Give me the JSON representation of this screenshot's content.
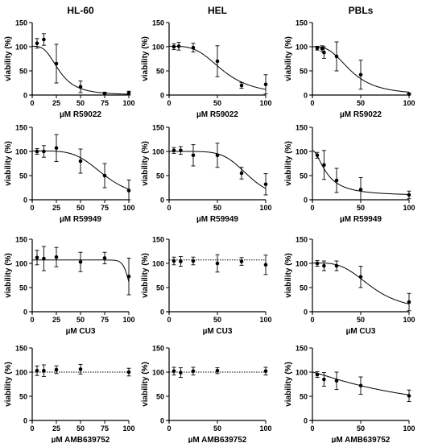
{
  "columns": [
    "HL-60",
    "HEL",
    "PBLs"
  ],
  "chart_data": [
    {
      "type": "scatter",
      "row": 0,
      "col": 0,
      "ylabel": "viability (%)",
      "xlabel": "µM R59022",
      "xlim": [
        0,
        100
      ],
      "ylim": [
        0,
        150
      ],
      "xticks": [
        0,
        25,
        50,
        75,
        100
      ],
      "yticks": [
        0,
        50,
        100,
        150
      ],
      "points": [
        {
          "x": 5,
          "y": 107,
          "err": 10
        },
        {
          "x": 12,
          "y": 115,
          "err": 12
        },
        {
          "x": 25,
          "y": 65,
          "err": 40
        },
        {
          "x": 50,
          "y": 17,
          "err": 12
        },
        {
          "x": 75,
          "y": 3,
          "err": 3
        },
        {
          "x": 100,
          "y": 4,
          "err": 4
        }
      ],
      "fit": {
        "kind": "sigmoid",
        "top": 101,
        "bottom": 0,
        "ic50": 28,
        "hill": 3.2
      }
    },
    {
      "type": "scatter",
      "row": 0,
      "col": 1,
      "ylabel": "viability (%)",
      "xlabel": "µM R59022",
      "xlim": [
        0,
        100
      ],
      "ylim": [
        0,
        150
      ],
      "xticks": [
        0,
        50,
        100
      ],
      "yticks": [
        0,
        50,
        100,
        150
      ],
      "points": [
        {
          "x": 5,
          "y": 100,
          "err": 6
        },
        {
          "x": 10,
          "y": 101,
          "err": 8
        },
        {
          "x": 25,
          "y": 98,
          "err": 9
        },
        {
          "x": 50,
          "y": 70,
          "err": 32
        },
        {
          "x": 75,
          "y": 20,
          "err": 6
        },
        {
          "x": 100,
          "y": 22,
          "err": 20
        }
      ],
      "fit": {
        "kind": "sigmoid",
        "top": 101,
        "bottom": 0,
        "ic50": 56,
        "hill": 3.5
      }
    },
    {
      "type": "scatter",
      "row": 0,
      "col": 2,
      "ylabel": "viability (%)",
      "xlabel": "µM R59022",
      "xlim": [
        0,
        100
      ],
      "ylim": [
        0,
        150
      ],
      "xticks": [
        0,
        50,
        100
      ],
      "yticks": [
        0,
        50,
        100,
        150
      ],
      "points": [
        {
          "x": 5,
          "y": 97,
          "err": 4
        },
        {
          "x": 10,
          "y": 96,
          "err": 6
        },
        {
          "x": 12,
          "y": 88,
          "err": 12
        },
        {
          "x": 25,
          "y": 80,
          "err": 30
        },
        {
          "x": 50,
          "y": 42,
          "err": 30
        },
        {
          "x": 100,
          "y": 2,
          "err": 2
        }
      ],
      "fit": {
        "kind": "sigmoid",
        "top": 100,
        "bottom": 0,
        "ic50": 40,
        "hill": 3
      }
    },
    {
      "type": "scatter",
      "row": 1,
      "col": 0,
      "ylabel": "viability (%)",
      "xlabel": "µM R59949",
      "xlim": [
        0,
        100
      ],
      "ylim": [
        0,
        150
      ],
      "xticks": [
        0,
        25,
        50,
        75,
        100
      ],
      "yticks": [
        0,
        50,
        100,
        150
      ],
      "points": [
        {
          "x": 5,
          "y": 100,
          "err": 6
        },
        {
          "x": 12,
          "y": 100,
          "err": 12
        },
        {
          "x": 25,
          "y": 107,
          "err": 28
        },
        {
          "x": 50,
          "y": 80,
          "err": 25
        },
        {
          "x": 75,
          "y": 50,
          "err": 25
        },
        {
          "x": 100,
          "y": 19,
          "err": 22
        }
      ],
      "fit": {
        "kind": "sigmoid",
        "top": 101,
        "bottom": 0,
        "ic50": 75,
        "hill": 4.5
      }
    },
    {
      "type": "scatter",
      "row": 1,
      "col": 1,
      "ylabel": "viability (%)",
      "xlabel": "µM R59949",
      "xlim": [
        0,
        100
      ],
      "ylim": [
        0,
        150
      ],
      "xticks": [
        0,
        50,
        100
      ],
      "yticks": [
        0,
        50,
        100,
        150
      ],
      "points": [
        {
          "x": 5,
          "y": 102,
          "err": 6
        },
        {
          "x": 12,
          "y": 102,
          "err": 8
        },
        {
          "x": 25,
          "y": 92,
          "err": 22
        },
        {
          "x": 50,
          "y": 92,
          "err": 25
        },
        {
          "x": 75,
          "y": 55,
          "err": 12
        },
        {
          "x": 100,
          "y": 32,
          "err": 22
        }
      ],
      "fit": {
        "kind": "sigmoid",
        "top": 100,
        "bottom": 0,
        "ic50": 82,
        "hill": 6
      }
    },
    {
      "type": "scatter",
      "row": 1,
      "col": 2,
      "ylabel": "viability (%)",
      "xlabel": "µM R59949",
      "xlim": [
        0,
        100
      ],
      "ylim": [
        0,
        150
      ],
      "xticks": [
        0,
        50,
        100
      ],
      "yticks": [
        0,
        50,
        100,
        150
      ],
      "points": [
        {
          "x": 5,
          "y": 92,
          "err": 6
        },
        {
          "x": 12,
          "y": 72,
          "err": 30
        },
        {
          "x": 25,
          "y": 40,
          "err": 25
        },
        {
          "x": 50,
          "y": 21,
          "err": 25
        },
        {
          "x": 100,
          "y": 10,
          "err": 8
        }
      ],
      "fit": {
        "kind": "sigmoid",
        "top": 102,
        "bottom": 8,
        "ic50": 15,
        "hill": 1.8
      }
    },
    {
      "type": "scatter",
      "row": 2,
      "col": 0,
      "ylabel": "viability (%)",
      "xlabel": "µM CU3",
      "xlim": [
        0,
        100
      ],
      "ylim": [
        0,
        150
      ],
      "xticks": [
        0,
        25,
        50,
        75,
        100
      ],
      "yticks": [
        0,
        50,
        100,
        150
      ],
      "points": [
        {
          "x": 5,
          "y": 112,
          "err": 15
        },
        {
          "x": 12,
          "y": 110,
          "err": 25
        },
        {
          "x": 25,
          "y": 113,
          "err": 20
        },
        {
          "x": 50,
          "y": 103,
          "err": 20
        },
        {
          "x": 75,
          "y": 111,
          "err": 12
        },
        {
          "x": 100,
          "y": 73,
          "err": 38
        }
      ],
      "fit": {
        "kind": "sigmoid",
        "top": 107,
        "bottom": 0,
        "ic50": 101,
        "hill": 30
      }
    },
    {
      "type": "scatter",
      "row": 2,
      "col": 1,
      "ylabel": "viability (%)",
      "xlabel": "µM CU3",
      "xlim": [
        0,
        100
      ],
      "ylim": [
        0,
        150
      ],
      "xticks": [
        0,
        50,
        100
      ],
      "yticks": [
        0,
        50,
        100,
        150
      ],
      "points": [
        {
          "x": 5,
          "y": 105,
          "err": 8
        },
        {
          "x": 12,
          "y": 104,
          "err": 10
        },
        {
          "x": 25,
          "y": 105,
          "err": 8
        },
        {
          "x": 50,
          "y": 100,
          "err": 18
        },
        {
          "x": 75,
          "y": 104,
          "err": 8
        },
        {
          "x": 100,
          "y": 97,
          "err": 20
        }
      ],
      "fit": {
        "kind": "constant",
        "y": 107,
        "dashed": true
      }
    },
    {
      "type": "scatter",
      "row": 2,
      "col": 2,
      "ylabel": "viability (%)",
      "xlabel": "µM CU3",
      "xlim": [
        0,
        100
      ],
      "ylim": [
        0,
        150
      ],
      "xticks": [
        0,
        50,
        100
      ],
      "yticks": [
        0,
        50,
        100,
        150
      ],
      "points": [
        {
          "x": 5,
          "y": 100,
          "err": 6
        },
        {
          "x": 12,
          "y": 95,
          "err": 10
        },
        {
          "x": 25,
          "y": 95,
          "err": 10
        },
        {
          "x": 50,
          "y": 72,
          "err": 22
        },
        {
          "x": 100,
          "y": 20,
          "err": 18
        }
      ],
      "fit": {
        "kind": "sigmoid",
        "top": 101,
        "bottom": 0,
        "ic50": 62,
        "hill": 3.5
      }
    },
    {
      "type": "scatter",
      "row": 3,
      "col": 0,
      "ylabel": "viability (%)",
      "xlabel": "µM AMB639752",
      "xlim": [
        0,
        100
      ],
      "ylim": [
        0,
        150
      ],
      "xticks": [
        0,
        25,
        50,
        75,
        100
      ],
      "yticks": [
        0,
        50,
        100,
        150
      ],
      "points": [
        {
          "x": 5,
          "y": 103,
          "err": 10
        },
        {
          "x": 12,
          "y": 103,
          "err": 12
        },
        {
          "x": 25,
          "y": 105,
          "err": 8
        },
        {
          "x": 50,
          "y": 106,
          "err": 10
        },
        {
          "x": 100,
          "y": 100,
          "err": 8
        }
      ],
      "fit": {
        "kind": "constant",
        "y": 100,
        "dashed": true
      }
    },
    {
      "type": "scatter",
      "row": 3,
      "col": 1,
      "ylabel": "viability (%)",
      "xlabel": "µM AMB639752",
      "xlim": [
        0,
        100
      ],
      "ylim": [
        0,
        150
      ],
      "xticks": [
        0,
        50,
        100
      ],
      "yticks": [
        0,
        50,
        100,
        150
      ],
      "points": [
        {
          "x": 5,
          "y": 102,
          "err": 8
        },
        {
          "x": 12,
          "y": 99,
          "err": 10
        },
        {
          "x": 25,
          "y": 102,
          "err": 8
        },
        {
          "x": 50,
          "y": 103,
          "err": 6
        },
        {
          "x": 100,
          "y": 102,
          "err": 8
        }
      ],
      "fit": {
        "kind": "constant",
        "y": 100,
        "dashed": true
      }
    },
    {
      "type": "scatter",
      "row": 3,
      "col": 2,
      "ylabel": "viability (%)",
      "xlabel": "µM AMB639752",
      "xlim": [
        0,
        100
      ],
      "ylim": [
        0,
        150
      ],
      "xticks": [
        0,
        50,
        100
      ],
      "yticks": [
        0,
        50,
        100,
        150
      ],
      "points": [
        {
          "x": 5,
          "y": 95,
          "err": 6
        },
        {
          "x": 12,
          "y": 85,
          "err": 14
        },
        {
          "x": 25,
          "y": 82,
          "err": 18
        },
        {
          "x": 50,
          "y": 72,
          "err": 18
        },
        {
          "x": 100,
          "y": 51,
          "err": 12
        }
      ],
      "fit": {
        "kind": "sigmoid",
        "top": 100,
        "bottom": 0,
        "ic50": 110,
        "hill": 1.2
      }
    }
  ]
}
